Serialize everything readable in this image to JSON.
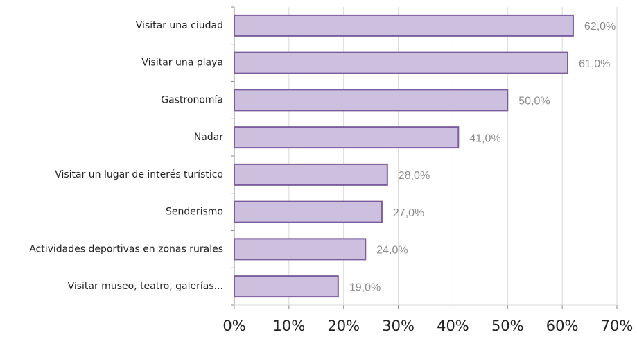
{
  "chart_data": {
    "type": "barh",
    "categories": [
      "Visitar una ciudad",
      "Visitar una playa",
      "Gastronomía",
      "Nadar",
      "Visitar un lugar de interés turístico",
      "Senderismo",
      "Actividades deportivas en zonas rurales",
      "Visitar museo, teatro, galerías..."
    ],
    "values": [
      62,
      61,
      50,
      41,
      28,
      27,
      24,
      19
    ],
    "value_labels": [
      "62,0%",
      "61,0%",
      "50,0%",
      "41,0%",
      "28,0%",
      "27,0%",
      "24,0%",
      "19,0%"
    ],
    "color": "#ccc0de",
    "edge_color": "#7b5c9f",
    "xlim": [
      0,
      70
    ],
    "xticks": [
      {
        "value": 0,
        "label": "0%"
      },
      {
        "value": 10,
        "label": "10%"
      },
      {
        "value": 20,
        "label": "20%"
      },
      {
        "value": 30,
        "label": "30%"
      },
      {
        "value": 40,
        "label": "40%"
      },
      {
        "value": 50,
        "label": "50%"
      },
      {
        "value": 60,
        "label": "60%"
      },
      {
        "value": 70,
        "label": "70%"
      }
    ],
    "grid": true
  }
}
